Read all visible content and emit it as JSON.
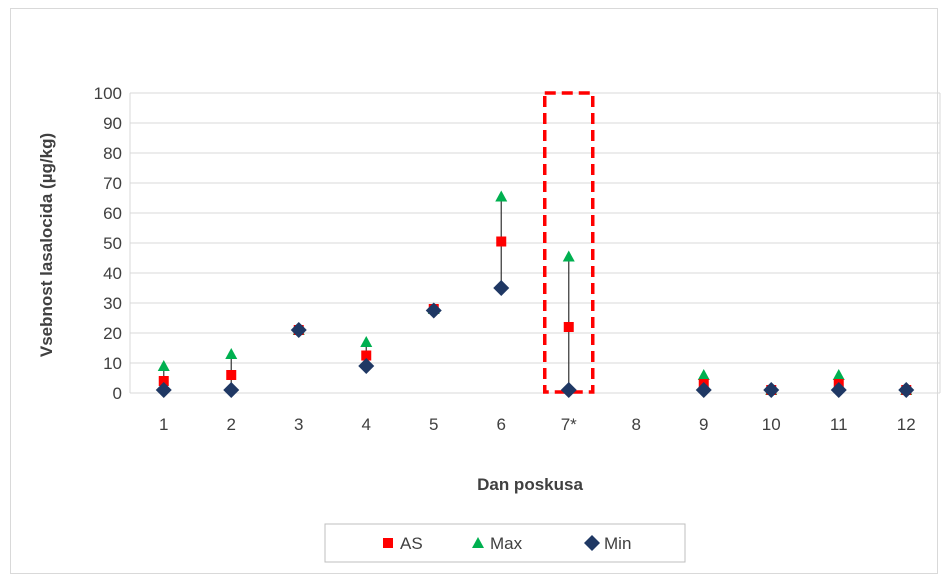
{
  "chart_data": {
    "type": "scatter",
    "xlabel": "Dan poskusa",
    "ylabel": "Vsebnost lasalocida  (µg/kg)",
    "ylim": [
      0,
      100
    ],
    "yticks": [
      0,
      10,
      20,
      30,
      40,
      50,
      60,
      70,
      80,
      90,
      100
    ],
    "categories": [
      "1",
      "2",
      "3",
      "4",
      "5",
      "6",
      "7*",
      "8",
      "9",
      "10",
      "11",
      "12"
    ],
    "grid": true,
    "legend_position": "bottom",
    "highlight": {
      "category": "7*",
      "style": "dashed-box",
      "color": "#ff0000"
    },
    "series": [
      {
        "name": "AS",
        "marker": "square",
        "color": "#ff0000",
        "values": [
          4,
          6,
          21,
          12.5,
          28,
          50.5,
          22,
          null,
          3,
          1,
          3,
          1
        ]
      },
      {
        "name": "Max",
        "marker": "triangle",
        "color": "#00b050",
        "values": [
          9,
          13,
          21,
          17,
          28,
          65.5,
          45.5,
          null,
          6,
          1,
          6,
          1
        ]
      },
      {
        "name": "Min",
        "marker": "diamond",
        "color": "#1f3864",
        "values": [
          1,
          1,
          21,
          9,
          27.5,
          35,
          1,
          null,
          1,
          1,
          1,
          1
        ]
      }
    ]
  }
}
